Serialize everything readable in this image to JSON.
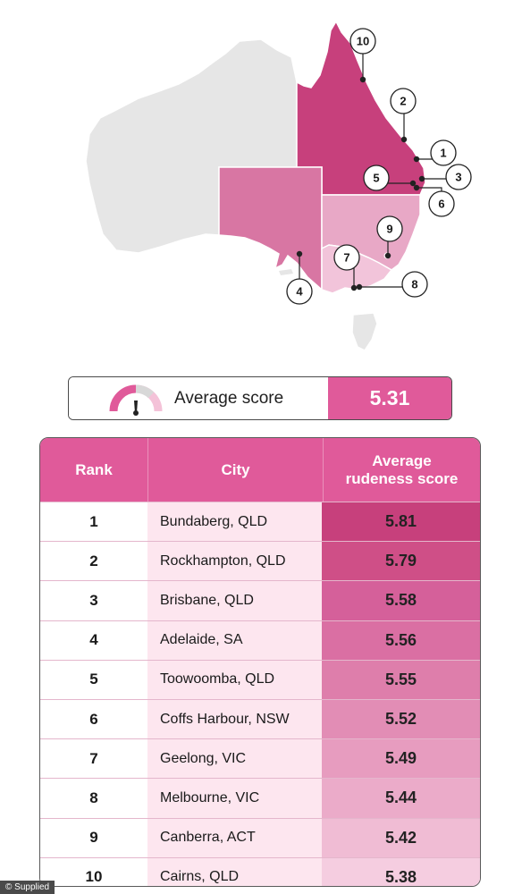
{
  "colors": {
    "accent": "#e05a9a",
    "region_grey": "#e6e6e6",
    "qld": "#c7407c",
    "sa": "#d876a3",
    "nsw": "#e8a8c6",
    "vic": "#f2c4da",
    "tas": "#e6e6e6",
    "pin": "#222222"
  },
  "map": {
    "pins": [
      {
        "label": "10"
      },
      {
        "label": "2"
      },
      {
        "label": "1"
      },
      {
        "label": "5"
      },
      {
        "label": "3"
      },
      {
        "label": "6"
      },
      {
        "label": "9"
      },
      {
        "label": "7"
      },
      {
        "label": "8"
      },
      {
        "label": "4"
      }
    ]
  },
  "average": {
    "label": "Average score",
    "value": "5.31",
    "gauge_icon": "gauge-icon"
  },
  "chart_data": {
    "type": "table",
    "columns": [
      "Rank",
      "City",
      "Average rudeness score"
    ],
    "rows": [
      {
        "rank": "1",
        "city": "Bundaberg, QLD",
        "score": 5.81,
        "score_label": "5.81",
        "color": "#c7407c"
      },
      {
        "rank": "2",
        "city": "Rockhampton, QLD",
        "score": 5.79,
        "score_label": "5.79",
        "color": "#cf4f87"
      },
      {
        "rank": "3",
        "city": "Brisbane, QLD",
        "score": 5.58,
        "score_label": "5.58",
        "color": "#d5609a"
      },
      {
        "rank": "4",
        "city": "Adelaide, SA",
        "score": 5.56,
        "score_label": "5.56",
        "color": "#da6fa3"
      },
      {
        "rank": "5",
        "city": "Toowoomba, QLD",
        "score": 5.55,
        "score_label": "5.55",
        "color": "#de7eab"
      },
      {
        "rank": "6",
        "city": "Coffs Harbour, NSW",
        "score": 5.52,
        "score_label": "5.52",
        "color": "#e28db5"
      },
      {
        "rank": "7",
        "city": "Geelong, VIC",
        "score": 5.49,
        "score_label": "5.49",
        "color": "#e79cbf"
      },
      {
        "rank": "8",
        "city": "Melbourne, VIC",
        "score": 5.44,
        "score_label": "5.44",
        "color": "#ebabc9"
      },
      {
        "rank": "9",
        "city": "Canberra, ACT",
        "score": 5.42,
        "score_label": "5.42",
        "color": "#f0bcd4"
      },
      {
        "rank": "10",
        "city": "Cairns, QLD",
        "score": 5.38,
        "score_label": "5.38",
        "color": "#f5cde0"
      }
    ]
  },
  "table": {
    "header_rank": "Rank",
    "header_city": "City",
    "header_score_line1": "Average",
    "header_score_line2": "rudeness score"
  },
  "credit": "© Supplied"
}
